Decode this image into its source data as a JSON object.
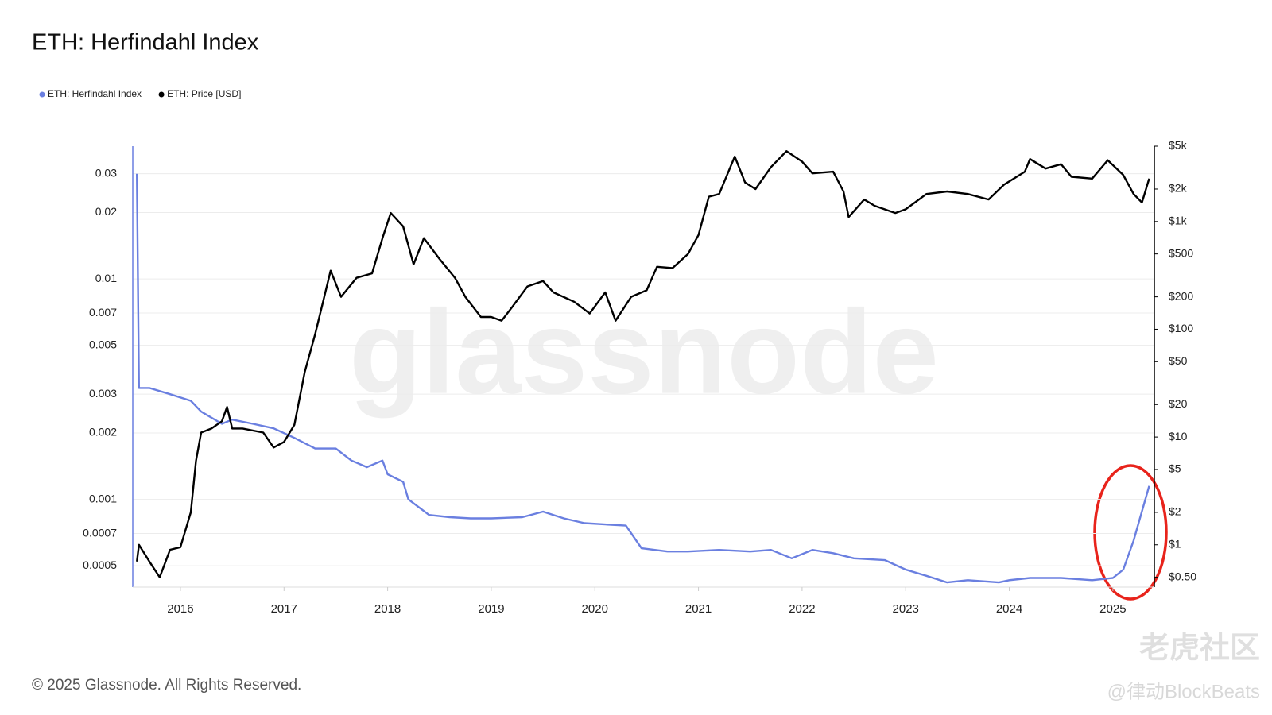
{
  "chart_data": {
    "type": "line",
    "title": "ETH: Herfindahl Index",
    "footer": "© 2025 Glassnode. All Rights Reserved.",
    "watermarks": [
      "glassnode",
      "老虎社区",
      "@律动BlockBeats"
    ],
    "log_scale": true,
    "grid": true,
    "legend": "top-left",
    "xlim": [
      2015.54,
      2025.4
    ],
    "xticks": [
      2016,
      2017,
      2018,
      2019,
      2020,
      2021,
      2022,
      2023,
      2024,
      2025
    ],
    "ylim": [
      0.0004,
      0.04
    ],
    "yticks": [
      0.03,
      0.02,
      0.01,
      0.007,
      0.005,
      0.003,
      0.002,
      0.001,
      0.0007,
      0.0005
    ],
    "y2lim": [
      0.405,
      5000
    ],
    "y2ticks": [
      {
        "value": 5000,
        "label": "$5k"
      },
      {
        "value": 2000,
        "label": "$2k"
      },
      {
        "value": 1000,
        "label": "$1k"
      },
      {
        "value": 500,
        "label": "$500"
      },
      {
        "value": 200,
        "label": "$200"
      },
      {
        "value": 100,
        "label": "$100"
      },
      {
        "value": 50,
        "label": "$50"
      },
      {
        "value": 20,
        "label": "$20"
      },
      {
        "value": 10,
        "label": "$10"
      },
      {
        "value": 5,
        "label": "$5"
      },
      {
        "value": 2,
        "label": "$2"
      },
      {
        "value": 1,
        "label": "$1"
      },
      {
        "value": 0.5,
        "label": "$0.50"
      }
    ],
    "series": [
      {
        "name": "ETH: Herfindahl Index",
        "color": "#6a7fe0",
        "axis": "y",
        "x": [
          2015.58,
          2015.6,
          2015.7,
          2015.9,
          2016.1,
          2016.2,
          2016.4,
          2016.5,
          2016.7,
          2016.9,
          2017.1,
          2017.3,
          2017.5,
          2017.65,
          2017.8,
          2017.95,
          2018.0,
          2018.15,
          2018.2,
          2018.4,
          2018.6,
          2018.8,
          2019.0,
          2019.3,
          2019.5,
          2019.7,
          2019.9,
          2020.1,
          2020.3,
          2020.45,
          2020.7,
          2020.9,
          2021.2,
          2021.5,
          2021.7,
          2021.9,
          2022.1,
          2022.3,
          2022.5,
          2022.8,
          2023.0,
          2023.2,
          2023.4,
          2023.6,
          2023.9,
          2024.0,
          2024.2,
          2024.5,
          2024.8,
          2025.0,
          2025.1,
          2025.2,
          2025.35
        ],
        "values": [
          0.03,
          0.0032,
          0.0032,
          0.003,
          0.0028,
          0.0025,
          0.0022,
          0.0023,
          0.0022,
          0.0021,
          0.0019,
          0.0017,
          0.0017,
          0.0015,
          0.0014,
          0.0015,
          0.0013,
          0.0012,
          0.001,
          0.00085,
          0.00083,
          0.00082,
          0.00082,
          0.00083,
          0.00088,
          0.00082,
          0.00078,
          0.00077,
          0.00076,
          0.0006,
          0.00058,
          0.00058,
          0.00059,
          0.00058,
          0.00059,
          0.00054,
          0.00059,
          0.00057,
          0.00054,
          0.00053,
          0.00048,
          0.00045,
          0.00042,
          0.00043,
          0.00042,
          0.00043,
          0.00044,
          0.00044,
          0.00043,
          0.00044,
          0.00048,
          0.00065,
          0.00115
        ]
      },
      {
        "name": "ETH: Price [USD]",
        "color": "#000000",
        "axis": "y2",
        "x": [
          2015.58,
          2015.6,
          2015.7,
          2015.8,
          2015.9,
          2016.0,
          2016.1,
          2016.15,
          2016.2,
          2016.3,
          2016.4,
          2016.45,
          2016.5,
          2016.6,
          2016.8,
          2016.9,
          2017.0,
          2017.1,
          2017.2,
          2017.3,
          2017.45,
          2017.55,
          2017.7,
          2017.85,
          2017.95,
          2018.03,
          2018.15,
          2018.25,
          2018.35,
          2018.5,
          2018.65,
          2018.75,
          2018.9,
          2019.0,
          2019.1,
          2019.2,
          2019.35,
          2019.5,
          2019.6,
          2019.8,
          2019.95,
          2020.1,
          2020.2,
          2020.35,
          2020.5,
          2020.6,
          2020.75,
          2020.9,
          2021.0,
          2021.1,
          2021.2,
          2021.35,
          2021.45,
          2021.55,
          2021.7,
          2021.85,
          2022.0,
          2022.1,
          2022.3,
          2022.4,
          2022.45,
          2022.6,
          2022.7,
          2022.9,
          2023.0,
          2023.2,
          2023.4,
          2023.6,
          2023.8,
          2023.95,
          2024.15,
          2024.2,
          2024.35,
          2024.5,
          2024.6,
          2024.8,
          2024.95,
          2025.1,
          2025.2,
          2025.28,
          2025.35
        ],
        "values": [
          0.7,
          1.0,
          0.7,
          0.5,
          0.9,
          0.95,
          2,
          6,
          11,
          12,
          14,
          19,
          12,
          12,
          11,
          8,
          9,
          13,
          40,
          90,
          350,
          200,
          300,
          330,
          700,
          1200,
          900,
          400,
          700,
          450,
          300,
          200,
          130,
          130,
          120,
          160,
          250,
          280,
          220,
          180,
          140,
          220,
          120,
          200,
          230,
          380,
          370,
          500,
          750,
          1700,
          1800,
          4000,
          2300,
          2000,
          3200,
          4500,
          3600,
          2800,
          2900,
          1900,
          1100,
          1600,
          1400,
          1200,
          1300,
          1800,
          1900,
          1800,
          1600,
          2200,
          2900,
          3800,
          3100,
          3400,
          2600,
          2500,
          3700,
          2700,
          1800,
          1500,
          2500
        ]
      }
    ]
  }
}
